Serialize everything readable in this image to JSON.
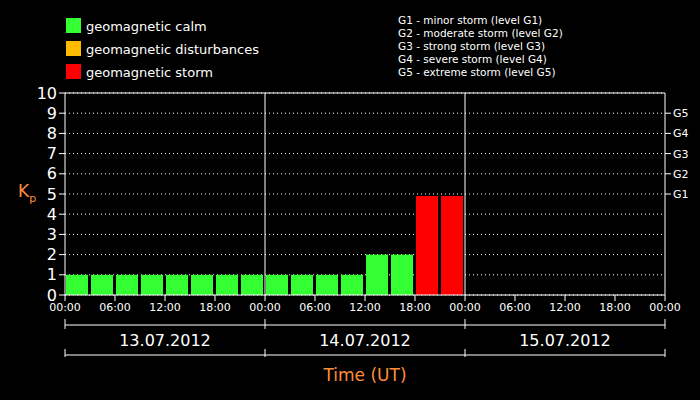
{
  "chart_data": {
    "type": "bar",
    "y_label": "Kp",
    "x_label": "Time (UT)",
    "x": [
      1.5,
      4.5,
      7.5,
      10.5,
      13.5,
      16.5,
      19.5,
      22.5,
      25.5,
      28.5,
      31.5,
      34.5,
      37.5,
      40.5,
      43.5,
      46.5
    ],
    "values": [
      1,
      1,
      1,
      1,
      1,
      1,
      1,
      1,
      1,
      1,
      1,
      1,
      2,
      2,
      4.9,
      4.9
    ],
    "colors": [
      "#33ff33",
      "#33ff33",
      "#33ff33",
      "#33ff33",
      "#33ff33",
      "#33ff33",
      "#33ff33",
      "#33ff33",
      "#33ff33",
      "#33ff33",
      "#33ff33",
      "#33ff33",
      "#33ff33",
      "#33ff33",
      "#ff0000",
      "#ff0000"
    ],
    "xlim": [
      0,
      72
    ],
    "xticks": [
      {
        "value": 0,
        "label": "00:00"
      },
      {
        "value": 6,
        "label": "06:00"
      },
      {
        "value": 12,
        "label": "12:00"
      },
      {
        "value": 18,
        "label": "18:00"
      },
      {
        "value": 24,
        "label": "00:00"
      },
      {
        "value": 30,
        "label": "06:00"
      },
      {
        "value": 36,
        "label": "12:00"
      },
      {
        "value": 42,
        "label": "18:00"
      },
      {
        "value": 48,
        "label": "00:00"
      },
      {
        "value": 54,
        "label": "06:00"
      },
      {
        "value": 60,
        "label": "12:00"
      },
      {
        "value": 66,
        "label": "18:00"
      },
      {
        "value": 72,
        "label": "00:00"
      }
    ],
    "ylim": [
      0,
      10
    ],
    "yticks": [
      0,
      1,
      2,
      3,
      4,
      5,
      6,
      7,
      8,
      9,
      10
    ],
    "y2lim": [
      0,
      10
    ],
    "y2ticks": [
      {
        "value": 5,
        "label": "G1"
      },
      {
        "value": 6,
        "label": "G2"
      },
      {
        "value": 7,
        "label": "G3"
      },
      {
        "value": 8,
        "label": "G4"
      },
      {
        "value": 9,
        "label": "G5"
      }
    ],
    "grid": true,
    "days": [
      "13.07.2012",
      "14.07.2012",
      "15.07.2012"
    ],
    "legend_items": [
      {
        "label": "geomagnetic calm",
        "color": "#33ff33"
      },
      {
        "label": "geomagnetic disturbances",
        "color": "#ffbb00"
      },
      {
        "label": "geomagnetic storm",
        "color": "#ff0000"
      }
    ],
    "storm_levels": [
      "G1 - minor storm (level G1)",
      "G2 - moderate storm (level G2)",
      "G3 - strong storm (level G3)",
      "G4 - severe storm (level G4)",
      "G5 - extreme storm (level G5)"
    ]
  }
}
